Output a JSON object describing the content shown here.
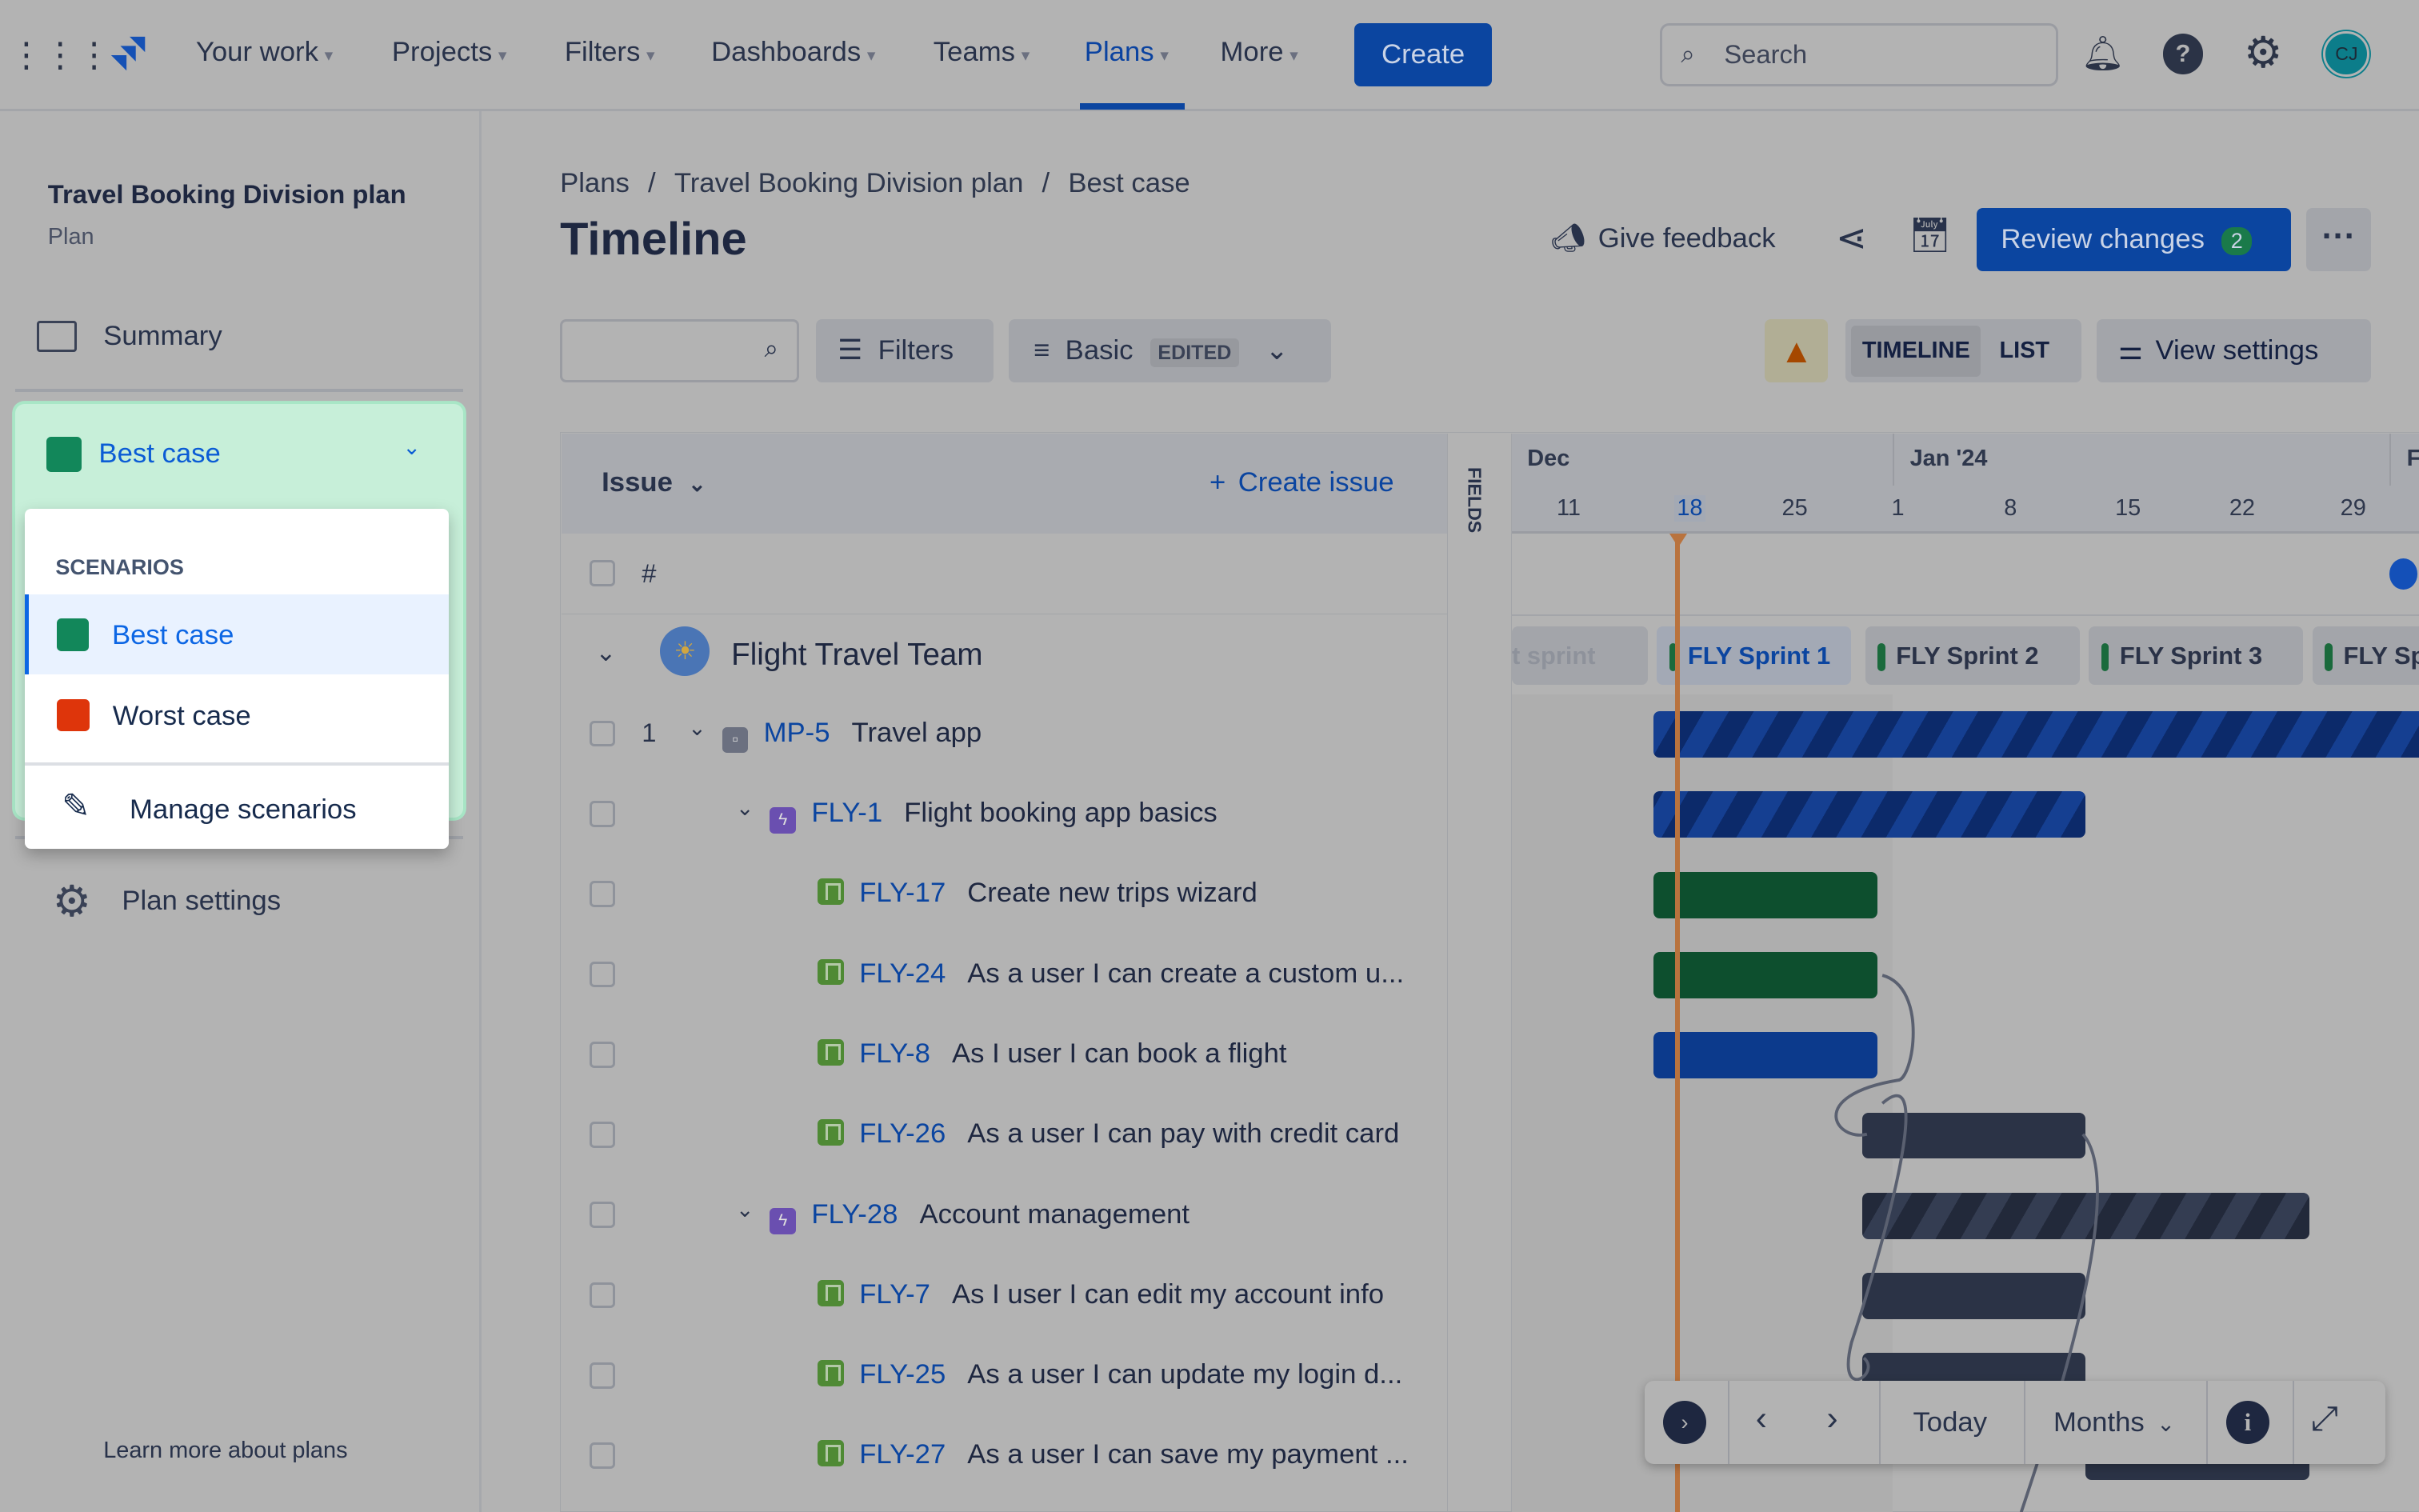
{
  "nav": {
    "items": [
      "Your work",
      "Projects",
      "Filters",
      "Dashboards",
      "Teams",
      "Plans",
      "More"
    ],
    "active": "Plans",
    "create": "Create",
    "search_placeholder": "Search",
    "avatar": "CJ"
  },
  "sidebar": {
    "plan_title": "Travel Booking Division plan",
    "plan_subtitle": "Plan",
    "summary": "Summary",
    "scenario_selected": "Best case",
    "plan_settings": "Plan settings",
    "learn_more": "Learn more about plans"
  },
  "dropdown": {
    "heading": "SCENARIOS",
    "items": [
      {
        "label": "Best case",
        "color": "#12875a"
      },
      {
        "label": "Worst case",
        "color": "#de350b"
      }
    ],
    "manage": "Manage scenarios"
  },
  "breadcrumb": [
    "Plans",
    "Travel Booking Division plan",
    "Best case"
  ],
  "page_title": "Timeline",
  "actions": {
    "feedback": "Give feedback",
    "review": "Review changes",
    "review_count": "2"
  },
  "toolbar": {
    "filters": "Filters",
    "view": "Basic",
    "edited": "EDITED",
    "timeline": "TIMELINE",
    "list": "LIST",
    "view_settings": "View settings"
  },
  "table": {
    "issue_header": "Issue",
    "create_issue": "Create issue",
    "hash": "#",
    "fields": "FIELDS",
    "team": "Flight Travel Team",
    "rows": [
      {
        "num": "1",
        "key": "MP-5",
        "summary": "Travel app"
      },
      {
        "key": "FLY-1",
        "summary": "Flight booking app basics"
      },
      {
        "key": "FLY-17",
        "summary": "Create new trips wizard"
      },
      {
        "key": "FLY-24",
        "summary": "As a user I can create a custom u..."
      },
      {
        "key": "FLY-8",
        "summary": "As I user I can book a flight"
      },
      {
        "key": "FLY-26",
        "summary": "As a user I can pay with credit card"
      },
      {
        "key": "FLY-28",
        "summary": "Account management"
      },
      {
        "key": "FLY-7",
        "summary": "As I user I can edit my account info"
      },
      {
        "key": "FLY-25",
        "summary": "As a user I can update my login d..."
      },
      {
        "key": "FLY-27",
        "summary": "As a user I can save my payment ..."
      }
    ]
  },
  "timeline": {
    "months": [
      "Dec",
      "Jan '24",
      "F"
    ],
    "weeks": [
      "11",
      "18",
      "25",
      "1",
      "8",
      "15",
      "22",
      "29"
    ],
    "today": "18",
    "sprints": [
      "t sprint",
      "FLY Sprint 1",
      "FLY Sprint 2",
      "FLY Sprint 3",
      "FLY Sp"
    ]
  },
  "controls": {
    "today": "Today",
    "scale": "Months"
  }
}
